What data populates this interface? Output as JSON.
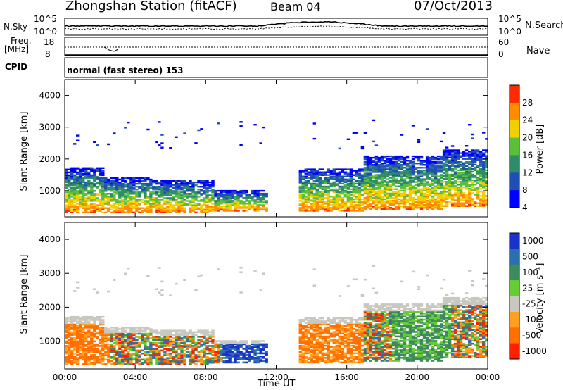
{
  "header": {
    "station": "Zhongshan Station (fitACF)",
    "beam": "Beam 04",
    "date": "07/Oct/2013"
  },
  "sky_panel": {
    "label": "N.Sky",
    "right_label": "N.Search",
    "left_ticks": [
      "10^5",
      "10^0"
    ],
    "right_ticks": [
      "10^5",
      "10^0"
    ]
  },
  "freq_panel": {
    "label_line1": "Freq.",
    "label_line2": "[MHz]",
    "right_label": "Nave",
    "left_ticks": [
      "18",
      "8"
    ],
    "right_ticks": [
      "60",
      "0"
    ]
  },
  "cpid": {
    "label": "CPID",
    "mode": "normal (fast stereo) 153"
  },
  "chart_data": [
    {
      "type": "heatmap",
      "title": "Power",
      "ylabel": "Slant Range [km]",
      "ylim": [
        180,
        4500
      ],
      "yticks": [
        "4000",
        "3000",
        "2000",
        "1000"
      ],
      "colorbar": {
        "label": "Power [dB]",
        "ticks": [
          "28",
          "24",
          "20",
          "16",
          "12",
          "8",
          "4"
        ],
        "colors": [
          "#0000ff",
          "#1f4fb4",
          "#2f8c6a",
          "#5cbf3c",
          "#f2d000",
          "#ff8c00",
          "#ff2a00"
        ]
      }
    },
    {
      "type": "heatmap",
      "title": "Velocity",
      "ylabel": "Slant Range [km]",
      "ylim": [
        180,
        4500
      ],
      "yticks": [
        "4000",
        "3000",
        "2000",
        "1000"
      ],
      "xlabel": "Time UT",
      "xticks": [
        "00:00",
        "04:00",
        "08:00",
        "12:00",
        "16:00",
        "20:00",
        "00:00"
      ],
      "colorbar": {
        "label": "Velocity [m s⁻¹]",
        "ticks": [
          "1000",
          "500",
          "100",
          "25",
          "-25",
          "-100",
          "-500",
          "-1000"
        ],
        "colors": [
          "#1a32c8",
          "#2a6fb0",
          "#3d8a5c",
          "#66cc33",
          "#c8c8c0",
          "#ffa020",
          "#ff7000",
          "#ff2000"
        ]
      }
    }
  ]
}
